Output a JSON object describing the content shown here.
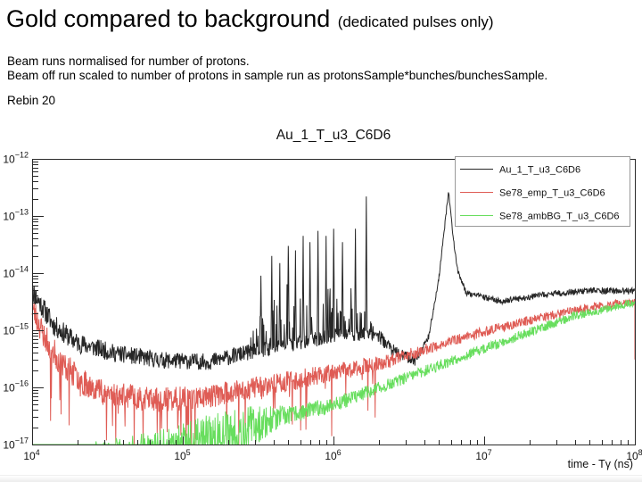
{
  "page": {
    "title": "Gold compared to background",
    "title_suffix": "(dedicated pulses only)",
    "line1": "Beam runs normalised for number of protons.",
    "line2": "Beam off run scaled to number of protons in sample run as protonsSample*bunches/bunchesSample.",
    "rebin": "Rebin 20"
  },
  "chart_data": {
    "type": "line",
    "title": "Au_1_T_u3_C6D6",
    "xlabel": "time - Tγ (ns)",
    "ylabel": "",
    "xscale": "log",
    "yscale": "log",
    "xlim": [
      10000.0,
      100000000.0
    ],
    "ylim": [
      1e-17,
      1e-12
    ],
    "x_tick_exponents": [
      4,
      5,
      6,
      7,
      8
    ],
    "y_tick_exponents": [
      -12,
      -13,
      -14,
      -15,
      -16,
      -17
    ],
    "grid": false,
    "legend_position": "top-right",
    "frame_color": "#2a2a2a",
    "series": [
      {
        "name": "Au_1_T_u3_C6D6",
        "color": "#262626",
        "seed": 11,
        "trend": [
          [
            10000.0,
            5e-15
          ],
          [
            14000.0,
            1.2e-15
          ],
          [
            20000.0,
            6e-16
          ],
          [
            35000.0,
            4e-16
          ],
          [
            70000.0,
            3e-16
          ],
          [
            150000.0,
            2.8e-16
          ],
          [
            260000.0,
            4e-16
          ],
          [
            500000.0,
            5.5e-16
          ],
          [
            1000000.0,
            8e-16
          ],
          [
            1900000.0,
            9e-16
          ],
          [
            2600000.0,
            4e-16
          ],
          [
            3500000.0,
            3e-16
          ],
          [
            4300000.0,
            8e-16
          ],
          [
            5000000.0,
            8e-15
          ],
          [
            5450000.0,
            6e-14
          ],
          [
            5800000.0,
            2.8e-13
          ],
          [
            6100000.0,
            7e-14
          ],
          [
            6600000.0,
            1.2e-14
          ],
          [
            7600000.0,
            4.5e-15
          ],
          [
            13000000.0,
            3.2e-15
          ],
          [
            25000000.0,
            4.2e-15
          ],
          [
            50000000.0,
            5e-15
          ],
          [
            100000000.0,
            4.8e-15
          ]
        ],
        "noise": [
          [
            10000.0,
            0.2
          ],
          [
            40000.0,
            0.15
          ],
          [
            250000.0,
            0.14
          ],
          [
            2000000.0,
            0.12
          ],
          [
            3500000.0,
            0.1
          ],
          [
            4500000.0,
            0.04
          ],
          [
            8000000.0,
            0.05
          ],
          [
            100000000.0,
            0.06
          ]
        ],
        "resonance_region": [
          270000.0,
          1850000.0
        ],
        "resonance_prob": 0.22,
        "resonance_envelope": [
          [
            270000.0,
            0.5
          ],
          [
            400000.0,
            1.2
          ],
          [
            700000.0,
            1.6
          ],
          [
            1100000.0,
            1.7
          ],
          [
            1350000.0,
            0.8
          ],
          [
            1850000.0,
            0.4
          ]
        ],
        "spikes": [
          [
            330000.0,
            9e-15
          ],
          [
            390000.0,
            2e-14
          ],
          [
            440000.0,
            1.5e-14
          ],
          [
            500000.0,
            3e-14
          ],
          [
            560000.0,
            2.5e-14
          ],
          [
            630000.0,
            4.5e-14
          ],
          [
            700000.0,
            3.5e-14
          ],
          [
            790000.0,
            5.5e-14
          ],
          [
            890000.0,
            4.5e-14
          ],
          [
            1000000.0,
            6e-14
          ],
          [
            1150000.0,
            3.5e-14
          ],
          [
            1400000.0,
            6e-14
          ],
          [
            1650000.0,
            2.2e-13
          ]
        ]
      },
      {
        "name": "Se78_emp_T_u3_C6D6",
        "color": "#df5c55",
        "seed": 23,
        "trend": [
          [
            10000.0,
            2.5e-15
          ],
          [
            12000.0,
            8e-16
          ],
          [
            15000.0,
            3e-16
          ],
          [
            22000.0,
            1.2e-16
          ],
          [
            35000.0,
            7.5e-17
          ],
          [
            70000.0,
            6e-17
          ],
          [
            150000.0,
            7e-17
          ],
          [
            300000.0,
            1e-16
          ],
          [
            600000.0,
            1.4e-16
          ],
          [
            1200000.0,
            2e-16
          ],
          [
            2500000.0,
            3e-16
          ],
          [
            5000000.0,
            5.5e-16
          ],
          [
            10000000.0,
            9.5e-16
          ],
          [
            20000000.0,
            1.5e-15
          ],
          [
            45000000.0,
            2.4e-15
          ],
          [
            100000000.0,
            3.2e-15
          ]
        ],
        "noise": [
          [
            10000.0,
            0.25
          ],
          [
            30000.0,
            0.22
          ],
          [
            300000.0,
            0.2
          ],
          [
            1600000.0,
            0.14
          ],
          [
            6000000.0,
            0.09
          ],
          [
            100000000.0,
            0.07
          ]
        ],
        "down_spike_prob": 0.055,
        "down_spike_max_dec": 1.2,
        "down_spike_region": [
          12000.0,
          2000000.0
        ],
        "end_drop_dec": 1.0
      },
      {
        "name": "Se78_ambBG_T_u3_C6D6",
        "color": "#68de5e",
        "seed": 37,
        "trend": [
          [
            10000.0,
            2e-18
          ],
          [
            80000.0,
            6e-18
          ],
          [
            160000.0,
            1.2e-17
          ],
          [
            400000.0,
            2.8e-17
          ],
          [
            1000000.0,
            5e-17
          ],
          [
            2500000.0,
            1.2e-16
          ],
          [
            6000000.0,
            2.9e-16
          ],
          [
            15000000.0,
            7e-16
          ],
          [
            40000000.0,
            1.8e-15
          ],
          [
            100000000.0,
            3.1e-15
          ]
        ],
        "noise": [
          [
            10000.0,
            0.55
          ],
          [
            200000.0,
            0.5
          ],
          [
            500000.0,
            0.16
          ],
          [
            3000000.0,
            0.1
          ],
          [
            100000000.0,
            0.07
          ]
        ]
      }
    ]
  }
}
